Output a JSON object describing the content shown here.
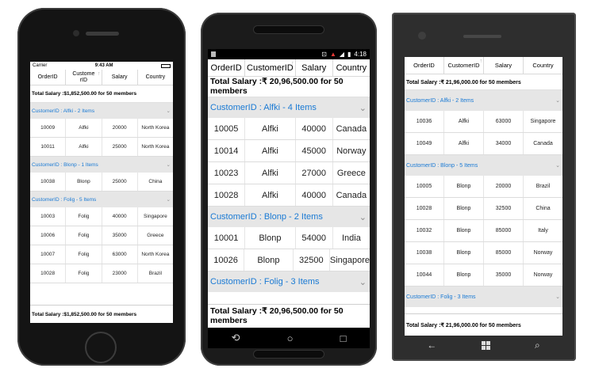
{
  "colors": {
    "group_text": "#1a7ad4",
    "group_bg": "#e6e6e6"
  },
  "ios": {
    "status": {
      "carrier": "Carrier",
      "time": "9:43 AM"
    },
    "headers": [
      "OrderID",
      "CustomerID",
      "Salary",
      "Country"
    ],
    "summary": "Total Salary :$1,852,500.00 for 50 members",
    "groups": [
      {
        "title": "CustomerID : Alfki - 2 Items",
        "rows": [
          [
            "10009",
            "Alfki",
            "20000",
            "North Korea"
          ],
          [
            "10011",
            "Alfki",
            "25000",
            "North Korea"
          ]
        ]
      },
      {
        "title": "CustomerID : Blonp - 1 Items",
        "rows": [
          [
            "10038",
            "Blonp",
            "25000",
            "China"
          ]
        ]
      },
      {
        "title": "CustomerID : Folig - 5 Items",
        "rows": [
          [
            "10003",
            "Folig",
            "40000",
            "Singapore"
          ],
          [
            "10006",
            "Folig",
            "35000",
            "Greece"
          ],
          [
            "10007",
            "Folig",
            "63000",
            "North Korea"
          ],
          [
            "10028",
            "Folig",
            "23000",
            "Brazil"
          ]
        ]
      }
    ],
    "caption": "Total Salary :$1,852,500.00 for 50 members"
  },
  "android": {
    "status": {
      "time": "4:18"
    },
    "headers": [
      "OrderID",
      "CustomerID",
      "Salary",
      "Country"
    ],
    "summary": "Total Salary :₹ 20,96,500.00 for 50 members",
    "groups": [
      {
        "title": "CustomerID : Alfki - 4 Items",
        "rows": [
          [
            "10005",
            "Alfki",
            "40000",
            "Canada"
          ],
          [
            "10014",
            "Alfki",
            "45000",
            "Norway"
          ],
          [
            "10023",
            "Alfki",
            "27000",
            "Greece"
          ],
          [
            "10028",
            "Alfki",
            "40000",
            "Canada"
          ]
        ]
      },
      {
        "title": "CustomerID : Blonp - 2 Items",
        "rows": [
          [
            "10001",
            "Blonp",
            "54000",
            "India"
          ],
          [
            "10026",
            "Blonp",
            "32500",
            "Singapore"
          ]
        ]
      },
      {
        "title": "CustomerID : Folig - 3 Items",
        "rows": []
      }
    ],
    "caption": "Total Salary :₹ 20,96,500.00 for 50 members",
    "nav": {
      "back": "⟲",
      "home": "○",
      "recent": "□"
    }
  },
  "winphone": {
    "headers": [
      "OrderID",
      "CustomerID",
      "Salary",
      "Country"
    ],
    "summary": "Total Salary :₹ 21,96,000.00 for 50 members",
    "groups": [
      {
        "title": "CustomerID : Alfki - 2 Items",
        "rows": [
          [
            "10036",
            "Alfki",
            "63000",
            "Singapore"
          ],
          [
            "10049",
            "Alfki",
            "34000",
            "Canada"
          ]
        ]
      },
      {
        "title": "CustomerID : Blonp - 5 Items",
        "rows": [
          [
            "10005",
            "Blonp",
            "20000",
            "Brazil"
          ],
          [
            "10028",
            "Blonp",
            "32500",
            "China"
          ],
          [
            "10032",
            "Blonp",
            "85000",
            "Italy"
          ],
          [
            "10038",
            "Blonp",
            "85000",
            "Norway"
          ],
          [
            "10044",
            "Blonp",
            "35000",
            "Norway"
          ]
        ]
      },
      {
        "title": "CustomerID : Folig - 3 Items",
        "rows": []
      }
    ],
    "caption": "Total Salary :₹ 21,96,000.00 for 50 members",
    "nav": {
      "back": "←",
      "search": "⌕"
    }
  }
}
